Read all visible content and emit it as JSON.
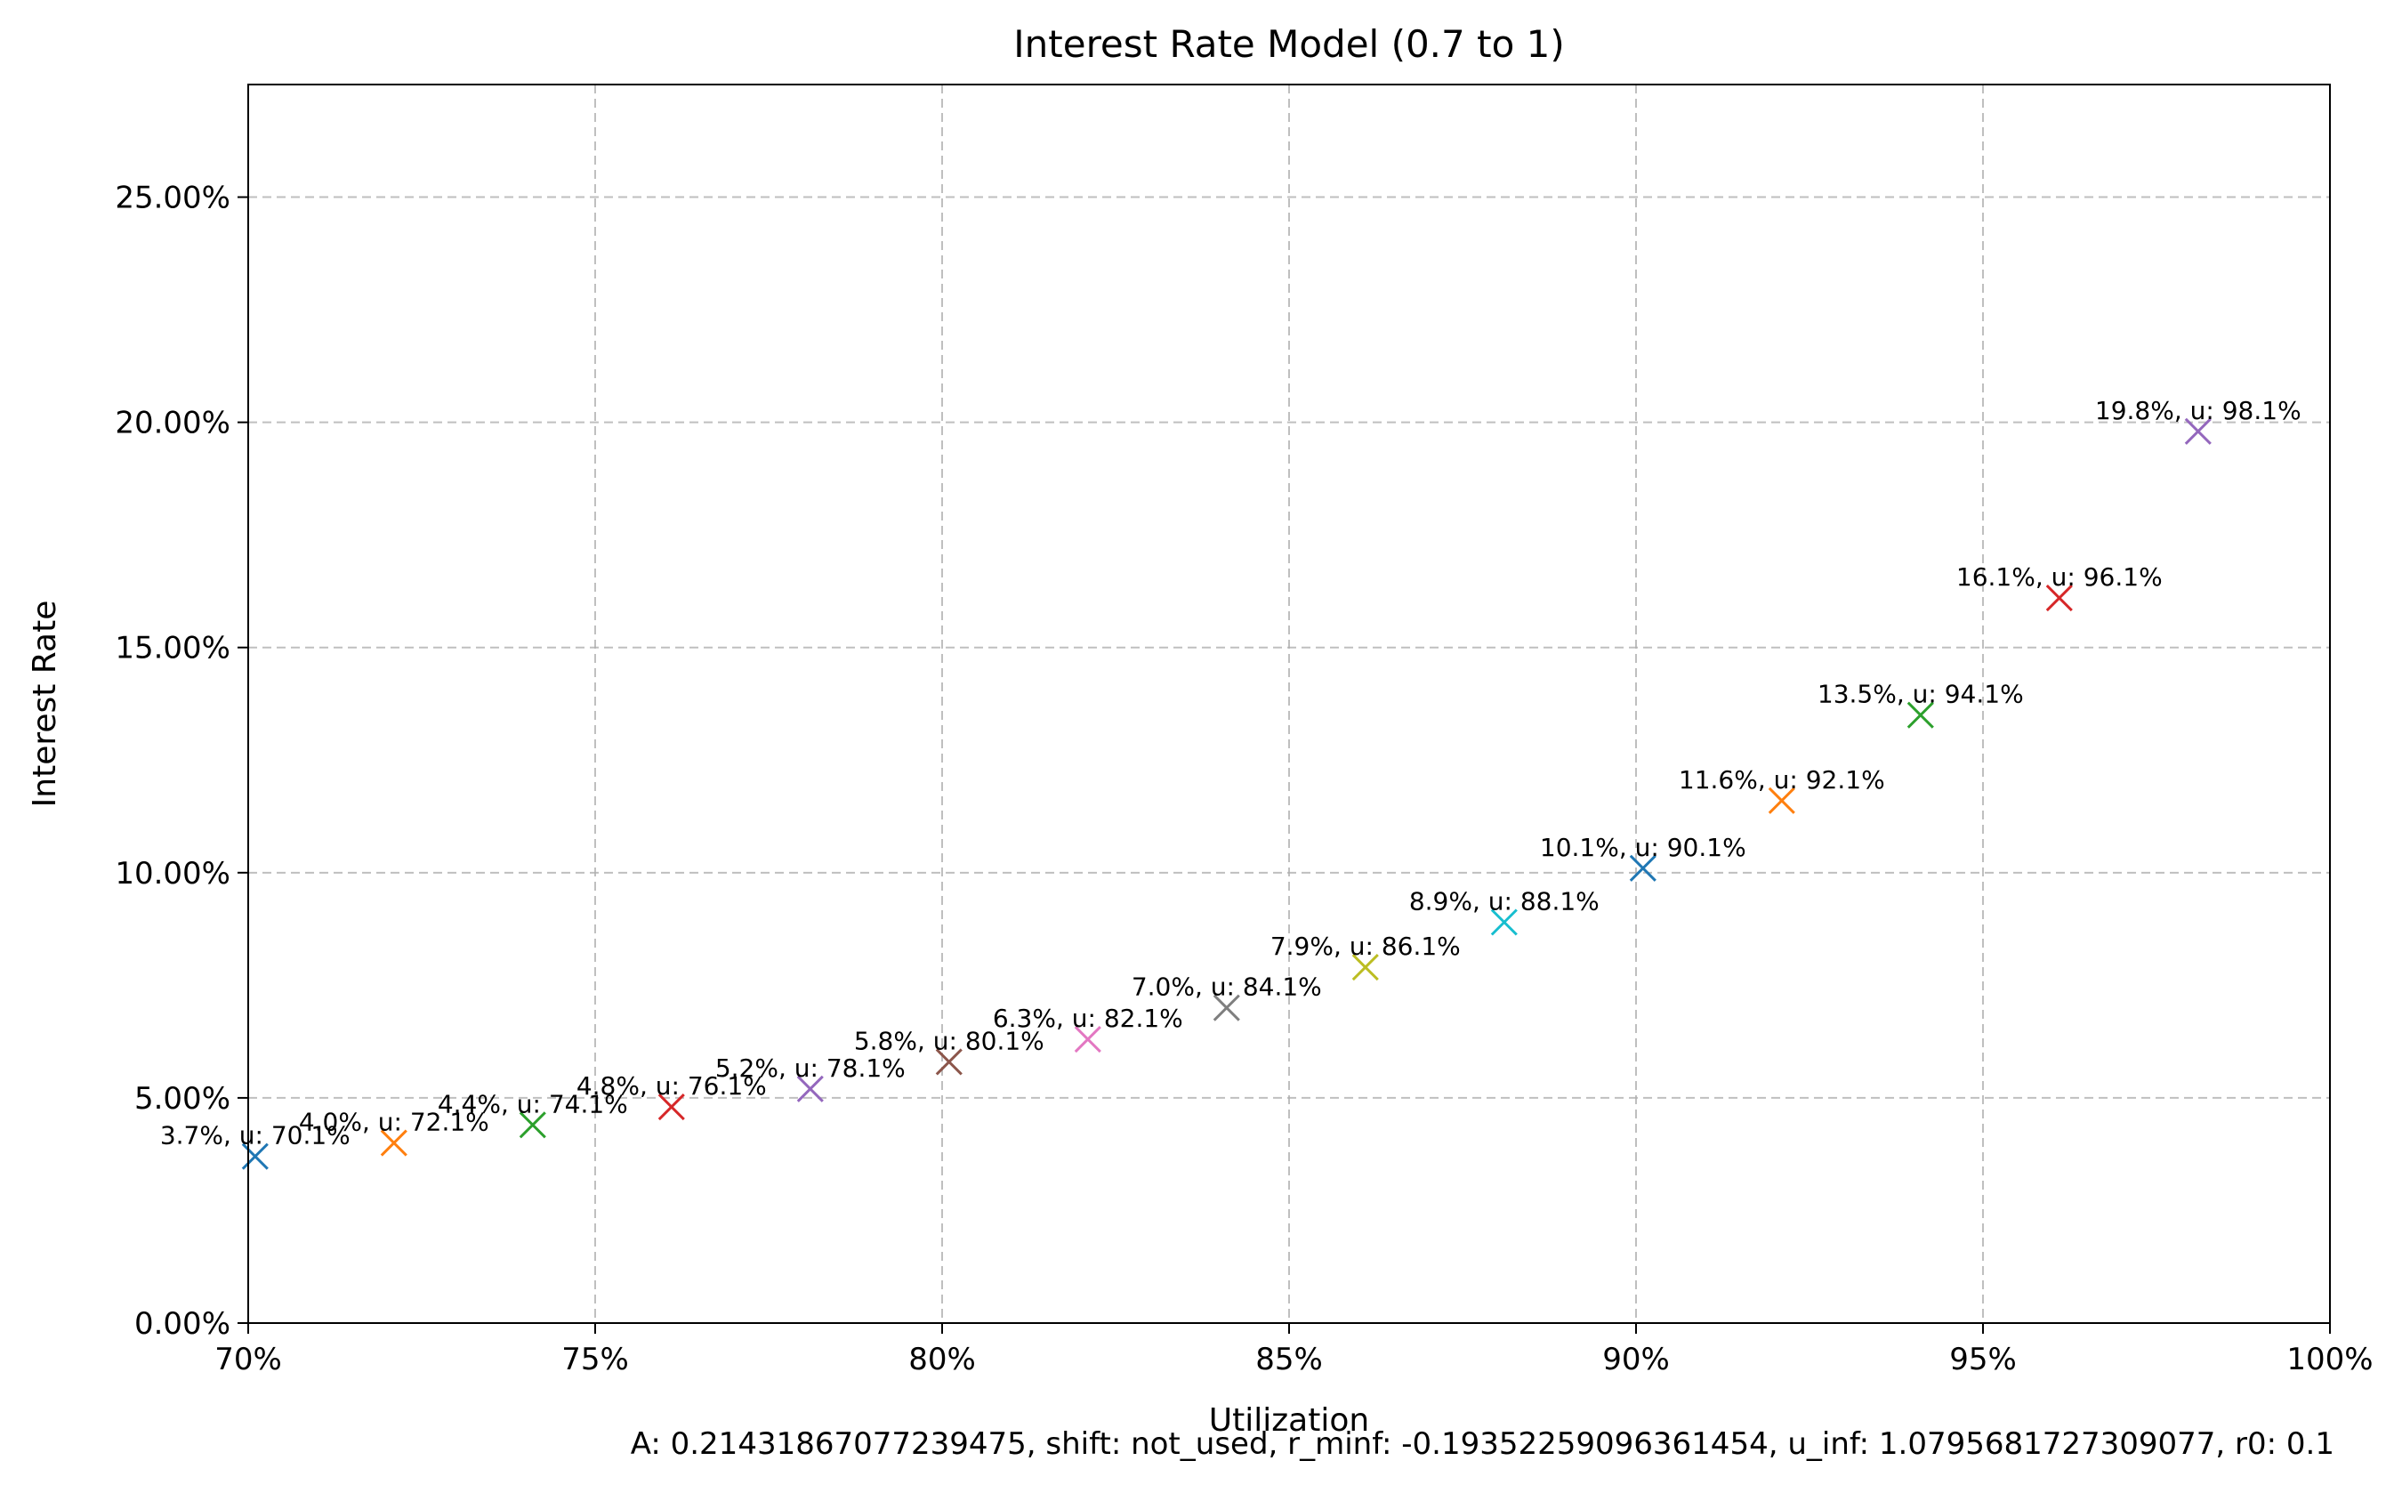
{
  "chart_data": {
    "type": "line",
    "title": "Interest Rate Model (0.7 to 1)",
    "xlabel": "Utilization",
    "ylabel": "Interest Rate",
    "xlim": [
      0.7,
      1.0
    ],
    "ylim": [
      0.0,
      0.275
    ],
    "grid": true,
    "x_ticks": [
      0.7,
      0.75,
      0.8,
      0.85,
      0.9,
      0.95,
      1.0
    ],
    "x_tick_labels": [
      "70%",
      "75%",
      "80%",
      "85%",
      "90%",
      "95%",
      "100%"
    ],
    "y_ticks": [
      0.0,
      0.05,
      0.1,
      0.15,
      0.2,
      0.25
    ],
    "y_tick_labels": [
      "0.00%",
      "5.00%",
      "10.00%",
      "15.00%",
      "20.00%",
      "25.00%"
    ],
    "curve": {
      "color": "#0000ff",
      "style": "dashed",
      "params": {
        "A": 0.21431867077239475,
        "r_minf": -0.19352259096361454,
        "u_inf": 1.0795681727309077
      }
    },
    "points": [
      {
        "x": 0.701,
        "y": 0.037,
        "label": "3.7%, u: 70.1%",
        "color": "#1f77b4"
      },
      {
        "x": 0.721,
        "y": 0.04,
        "label": "4.0%, u: 72.1%",
        "color": "#ff7f0e"
      },
      {
        "x": 0.741,
        "y": 0.044,
        "label": "4.4%, u: 74.1%",
        "color": "#2ca02c"
      },
      {
        "x": 0.761,
        "y": 0.048,
        "label": "4.8%, u: 76.1%",
        "color": "#d62728"
      },
      {
        "x": 0.781,
        "y": 0.052,
        "label": "5.2%, u: 78.1%",
        "color": "#9467bd"
      },
      {
        "x": 0.801,
        "y": 0.058,
        "label": "5.8%, u: 80.1%",
        "color": "#8c564b"
      },
      {
        "x": 0.821,
        "y": 0.063,
        "label": "6.3%, u: 82.1%",
        "color": "#e377c2"
      },
      {
        "x": 0.841,
        "y": 0.07,
        "label": "7.0%, u: 84.1%",
        "color": "#7f7f7f"
      },
      {
        "x": 0.861,
        "y": 0.079,
        "label": "7.9%, u: 86.1%",
        "color": "#bcbd22"
      },
      {
        "x": 0.881,
        "y": 0.089,
        "label": "8.9%, u: 88.1%",
        "color": "#17becf"
      },
      {
        "x": 0.901,
        "y": 0.101,
        "label": "10.1%, u: 90.1%",
        "color": "#1f77b4"
      },
      {
        "x": 0.921,
        "y": 0.116,
        "label": "11.6%, u: 92.1%",
        "color": "#ff7f0e"
      },
      {
        "x": 0.941,
        "y": 0.135,
        "label": "13.5%, u: 94.1%",
        "color": "#2ca02c"
      },
      {
        "x": 0.961,
        "y": 0.161,
        "label": "16.1%, u: 96.1%",
        "color": "#d62728"
      },
      {
        "x": 0.981,
        "y": 0.198,
        "label": "19.8%, u: 98.1%",
        "color": "#9467bd"
      }
    ],
    "footer": "A: 0.21431867077239475, shift: not_used, r_minf: -0.19352259096361454, u_inf: 1.0795681727309077, r0: 0.1"
  }
}
